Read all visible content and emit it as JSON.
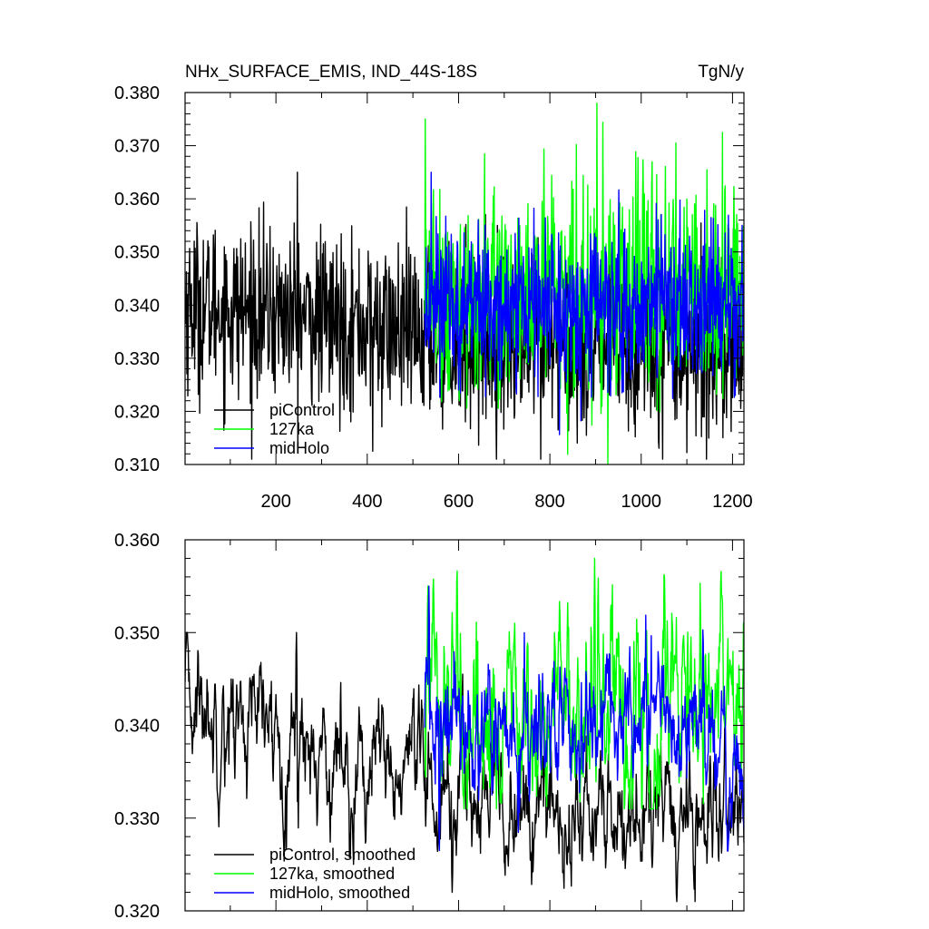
{
  "title_left": "NHx_SURFACE_EMIS, IND_44S-18S",
  "title_right": "TgN/y",
  "colors": {
    "piControl": "#000000",
    "ka127": "#00ff00",
    "midHolo": "#0000ff"
  },
  "chart_data": [
    {
      "type": "line",
      "panel": "top",
      "xlim": [
        1,
        1225
      ],
      "ylim": [
        0.31,
        0.38
      ],
      "xticks": [
        200,
        400,
        600,
        800,
        1000,
        1200
      ],
      "yticks": [
        "0.310",
        "0.320",
        "0.330",
        "0.340",
        "0.350",
        "0.360",
        "0.370",
        "0.380"
      ],
      "legend_position": "bottom-left",
      "series": [
        {
          "name": "piControl",
          "color": "#000000",
          "x_start": 1,
          "x_end": 1225,
          "n": 1225,
          "mean": [
            [
              1,
              0.34
            ],
            [
              250,
              0.338
            ],
            [
              530,
              0.334
            ],
            [
              800,
              0.332
            ],
            [
              1225,
              0.332
            ]
          ],
          "sd": 0.008,
          "min": 0.311,
          "max": 0.365,
          "notable": [
            [
              247,
              0.365
            ],
            [
              412,
              0.3125
            ],
            [
              780,
              0.311
            ],
            [
              1143,
              0.311
            ]
          ]
        },
        {
          "name": "127ka",
          "color": "#00ff00",
          "x_start": 526,
          "x_end": 1225,
          "n": 700,
          "mean": [
            [
              526,
              0.342
            ],
            [
              1225,
              0.342
            ]
          ],
          "sd": 0.0095,
          "min": 0.31,
          "max": 0.378,
          "notable": [
            [
              527,
              0.375
            ],
            [
              903,
              0.378
            ],
            [
              927,
              0.31
            ],
            [
              1178,
              0.3725
            ]
          ]
        },
        {
          "name": "midHolo",
          "color": "#0000ff",
          "x_start": 526,
          "x_end": 1225,
          "n": 700,
          "mean": [
            [
              526,
              0.34
            ],
            [
              1225,
              0.34
            ]
          ],
          "sd": 0.0075,
          "min": 0.315,
          "max": 0.365,
          "notable": [
            [
              540,
              0.365
            ],
            [
              1221,
              0.355
            ]
          ]
        }
      ]
    },
    {
      "type": "line",
      "panel": "bottom",
      "xlim": [
        1,
        1225
      ],
      "ylim": [
        0.32,
        0.36
      ],
      "yticks": [
        "0.320",
        "0.330",
        "0.340",
        "0.350",
        "0.360"
      ],
      "legend_position": "bottom-left",
      "series": [
        {
          "name": "piControl, smoothed",
          "color": "#000000",
          "x_start": 1,
          "x_end": 1225,
          "n": 1225,
          "mean": [
            [
              1,
              0.343
            ],
            [
              250,
              0.338
            ],
            [
              530,
              0.333
            ],
            [
              800,
              0.33
            ],
            [
              1225,
              0.33
            ]
          ],
          "sd": 0.0035,
          "min": 0.321,
          "max": 0.35,
          "notable": [
            [
              245,
              0.35
            ],
            [
              586,
              0.322
            ],
            [
              1078,
              0.321
            ]
          ]
        },
        {
          "name": "127ka, smoothed",
          "color": "#00ff00",
          "x_start": 526,
          "x_end": 1225,
          "n": 700,
          "mean": [
            [
              526,
              0.342
            ],
            [
              1225,
              0.342
            ]
          ],
          "sd": 0.006,
          "min": 0.331,
          "max": 0.358,
          "notable": [
            [
              533,
              0.355
            ],
            [
              898,
              0.358
            ],
            [
              1177,
              0.354
            ]
          ]
        },
        {
          "name": "midHolo, smoothed",
          "color": "#0000ff",
          "x_start": 526,
          "x_end": 1225,
          "n": 700,
          "mean": [
            [
              526,
              0.34
            ],
            [
              1225,
              0.34
            ]
          ],
          "sd": 0.004,
          "min": 0.326,
          "max": 0.355,
          "notable": [
            [
              535,
              0.355
            ],
            [
              558,
              0.3265
            ]
          ]
        }
      ]
    }
  ]
}
